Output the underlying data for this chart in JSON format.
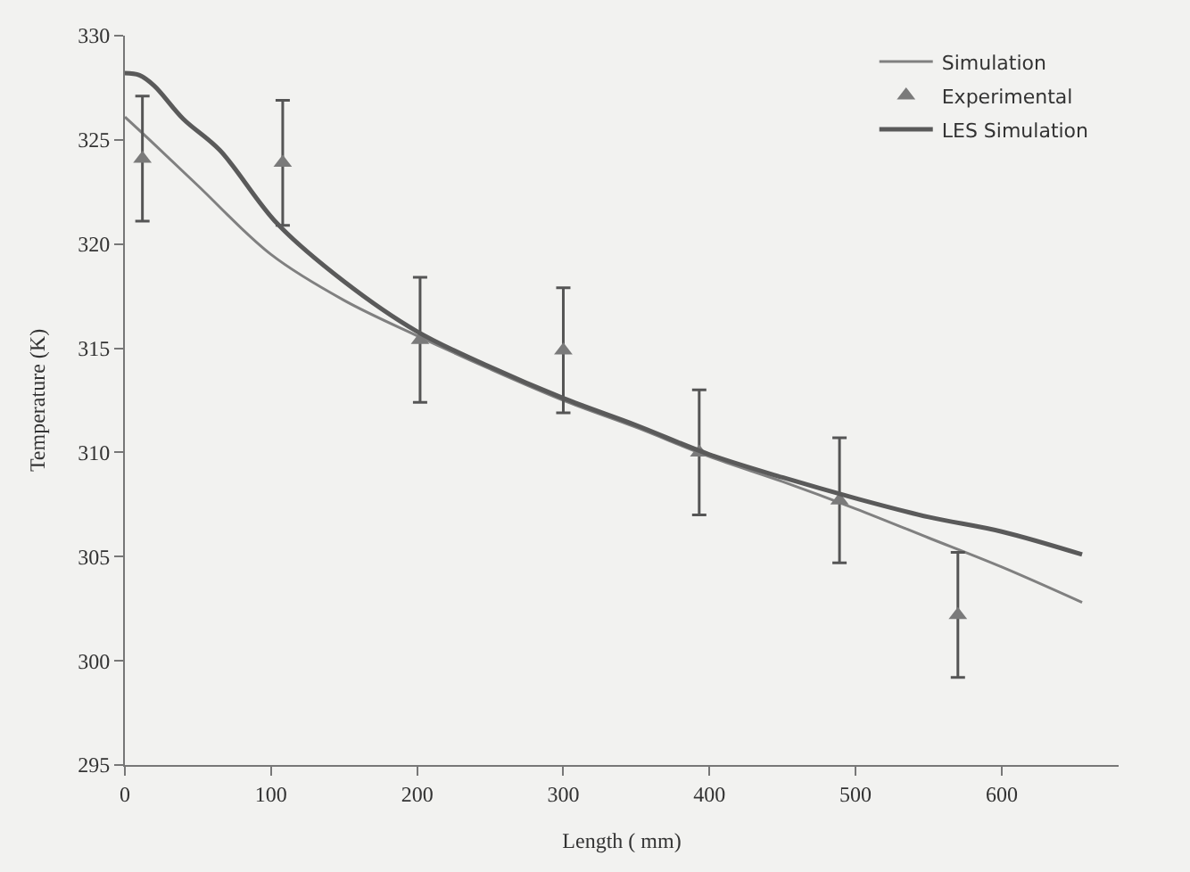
{
  "chart_data": {
    "type": "line",
    "xlabel": "Length ( mm)",
    "ylabel": "Temperature (K)",
    "xlim": [
      0,
      680
    ],
    "xticks": [
      0,
      100,
      200,
      300,
      400,
      500,
      600
    ],
    "ylim": [
      295,
      330
    ],
    "yticks": [
      295,
      300,
      305,
      310,
      315,
      320,
      325,
      330
    ],
    "grid": false,
    "legend": "top right",
    "series": [
      {
        "name": "Simulation",
        "color": "#808080",
        "line_style": "solid",
        "marker": "none",
        "x": [
          0,
          20,
          50,
          100,
          150,
          200,
          250,
          300,
          350,
          400,
          450,
          500,
          550,
          600,
          655
        ],
        "values": [
          326.1,
          324.8,
          322.8,
          319.5,
          317.3,
          315.6,
          314.0,
          312.5,
          311.2,
          309.8,
          308.6,
          307.3,
          305.9,
          304.5,
          302.8
        ]
      },
      {
        "name": "Experimental",
        "type": "scatter",
        "color": "#7a7a7a",
        "marker": "triangle",
        "x": [
          12,
          108,
          202,
          300,
          393,
          489,
          570
        ],
        "values": [
          324.1,
          323.9,
          315.4,
          314.9,
          310.0,
          307.7,
          302.2
        ],
        "errors": [
          3,
          3,
          3,
          3,
          3,
          3,
          3
        ]
      },
      {
        "name": "LES Simulation",
        "color": "#5a5a5a",
        "line_style": "solid",
        "marker": "none",
        "x": [
          0,
          10,
          20,
          40,
          65,
          104,
          150,
          200,
          250,
          300,
          350,
          400,
          450,
          500,
          550,
          600,
          655
        ],
        "values": [
          328.2,
          328.1,
          327.6,
          326.0,
          324.5,
          321.0,
          318.2,
          315.8,
          314.1,
          312.6,
          311.3,
          309.9,
          308.8,
          307.8,
          306.9,
          306.2,
          305.1
        ]
      }
    ]
  }
}
